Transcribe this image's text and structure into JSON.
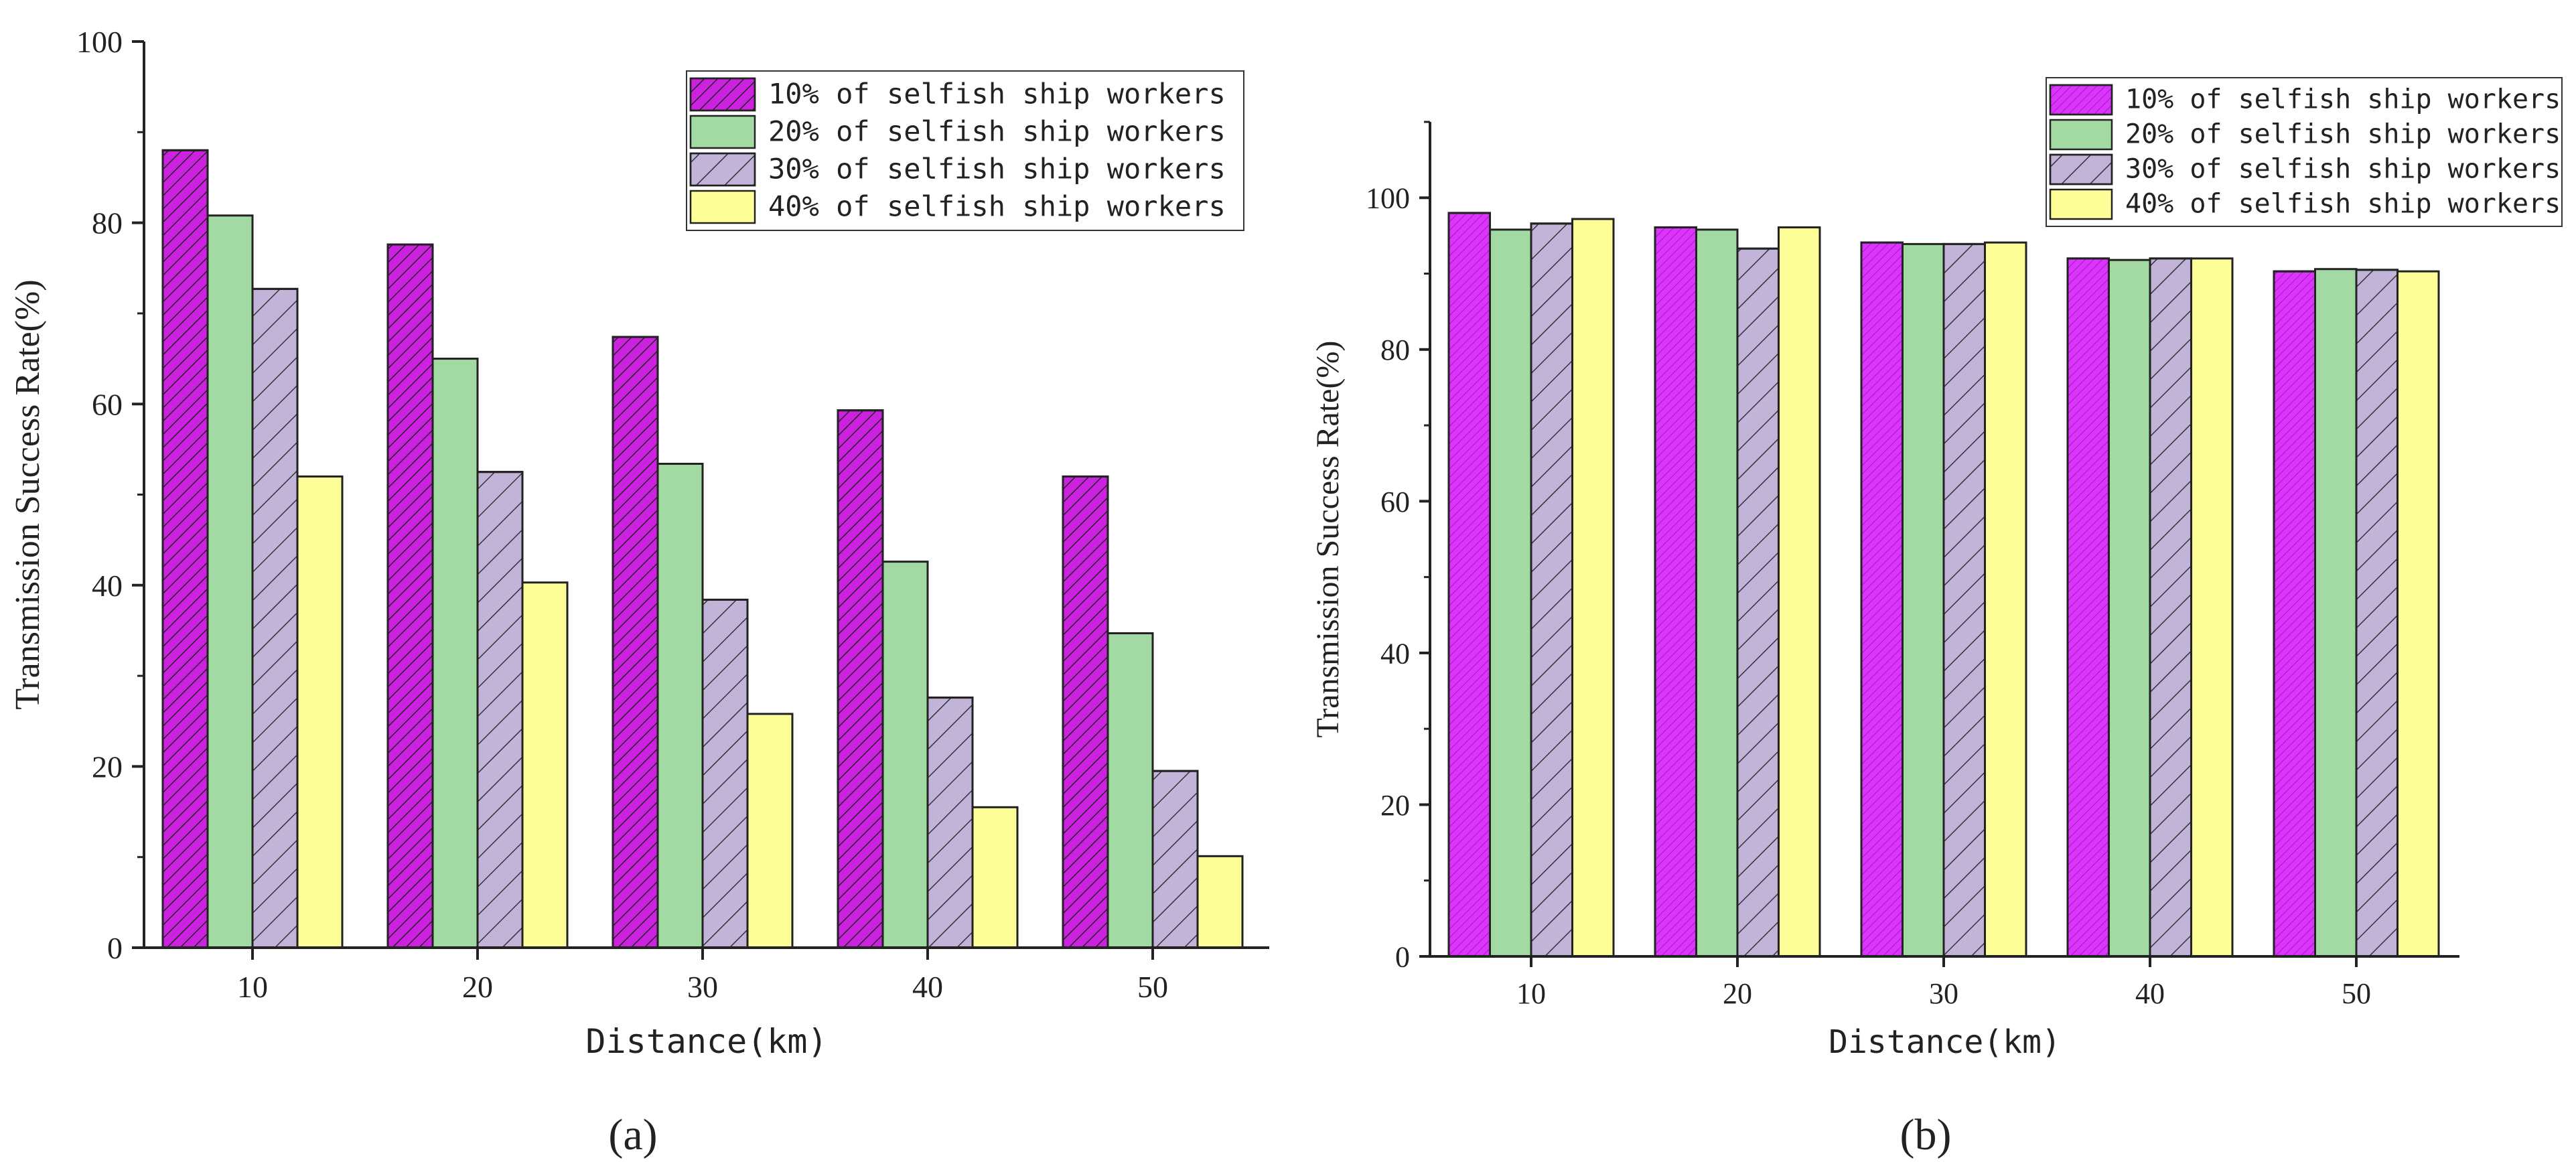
{
  "chart_data": [
    {
      "type": "bar",
      "panel_label": "(a)",
      "xlabel": "Distance(km)",
      "ylabel": "Transmission Success Rate(%)",
      "categories": [
        "10",
        "20",
        "30",
        "40",
        "50"
      ],
      "ylim": [
        0,
        100
      ],
      "yticks": [
        0,
        20,
        40,
        60,
        80,
        100
      ],
      "legend_position": "top-right",
      "series": [
        {
          "name": "10% of selfish ship workers",
          "values": [
            88,
            77.6,
            67.4,
            59.3,
            52
          ],
          "color": "#cc22e0",
          "pattern": "dense-hatch"
        },
        {
          "name": "20% of selfish ship workers",
          "values": [
            80.8,
            65,
            53.4,
            42.6,
            34.7
          ],
          "color": "#a3d9a3",
          "pattern": "none"
        },
        {
          "name": "30% of selfish ship workers",
          "values": [
            72.7,
            52.5,
            38.4,
            27.6,
            19.5
          ],
          "color": "#c2b3d9",
          "pattern": "sparse-hatch"
        },
        {
          "name": "40% of selfish ship workers",
          "values": [
            52,
            40.3,
            25.8,
            15.5,
            10.1
          ],
          "color": "#ffff99",
          "pattern": "none"
        }
      ]
    },
    {
      "type": "bar",
      "panel_label": "(b)",
      "xlabel": "Distance(km)",
      "ylabel": "Transmission Success Rate(%)",
      "categories": [
        "10",
        "20",
        "30",
        "40",
        "50"
      ],
      "ylim": [
        0,
        110
      ],
      "yticks": [
        0,
        20,
        40,
        60,
        80,
        100
      ],
      "legend_position": "top-right",
      "series": [
        {
          "name": "10% of selfish ship workers",
          "values": [
            98,
            96.1,
            94.1,
            92,
            90.3
          ],
          "color": "#dd33ff",
          "pattern": "fine-hatch"
        },
        {
          "name": "20% of selfish ship workers",
          "values": [
            95.8,
            95.8,
            93.9,
            91.8,
            90.6
          ],
          "color": "#a3d9a3",
          "pattern": "none"
        },
        {
          "name": "30% of selfish ship workers",
          "values": [
            96.6,
            93.3,
            93.9,
            92,
            90.5
          ],
          "color": "#c2b3d9",
          "pattern": "sparse-hatch"
        },
        {
          "name": "40% of selfish ship workers",
          "values": [
            97.2,
            96.1,
            94.1,
            92,
            90.3
          ],
          "color": "#ffff99",
          "pattern": "none"
        }
      ]
    }
  ]
}
